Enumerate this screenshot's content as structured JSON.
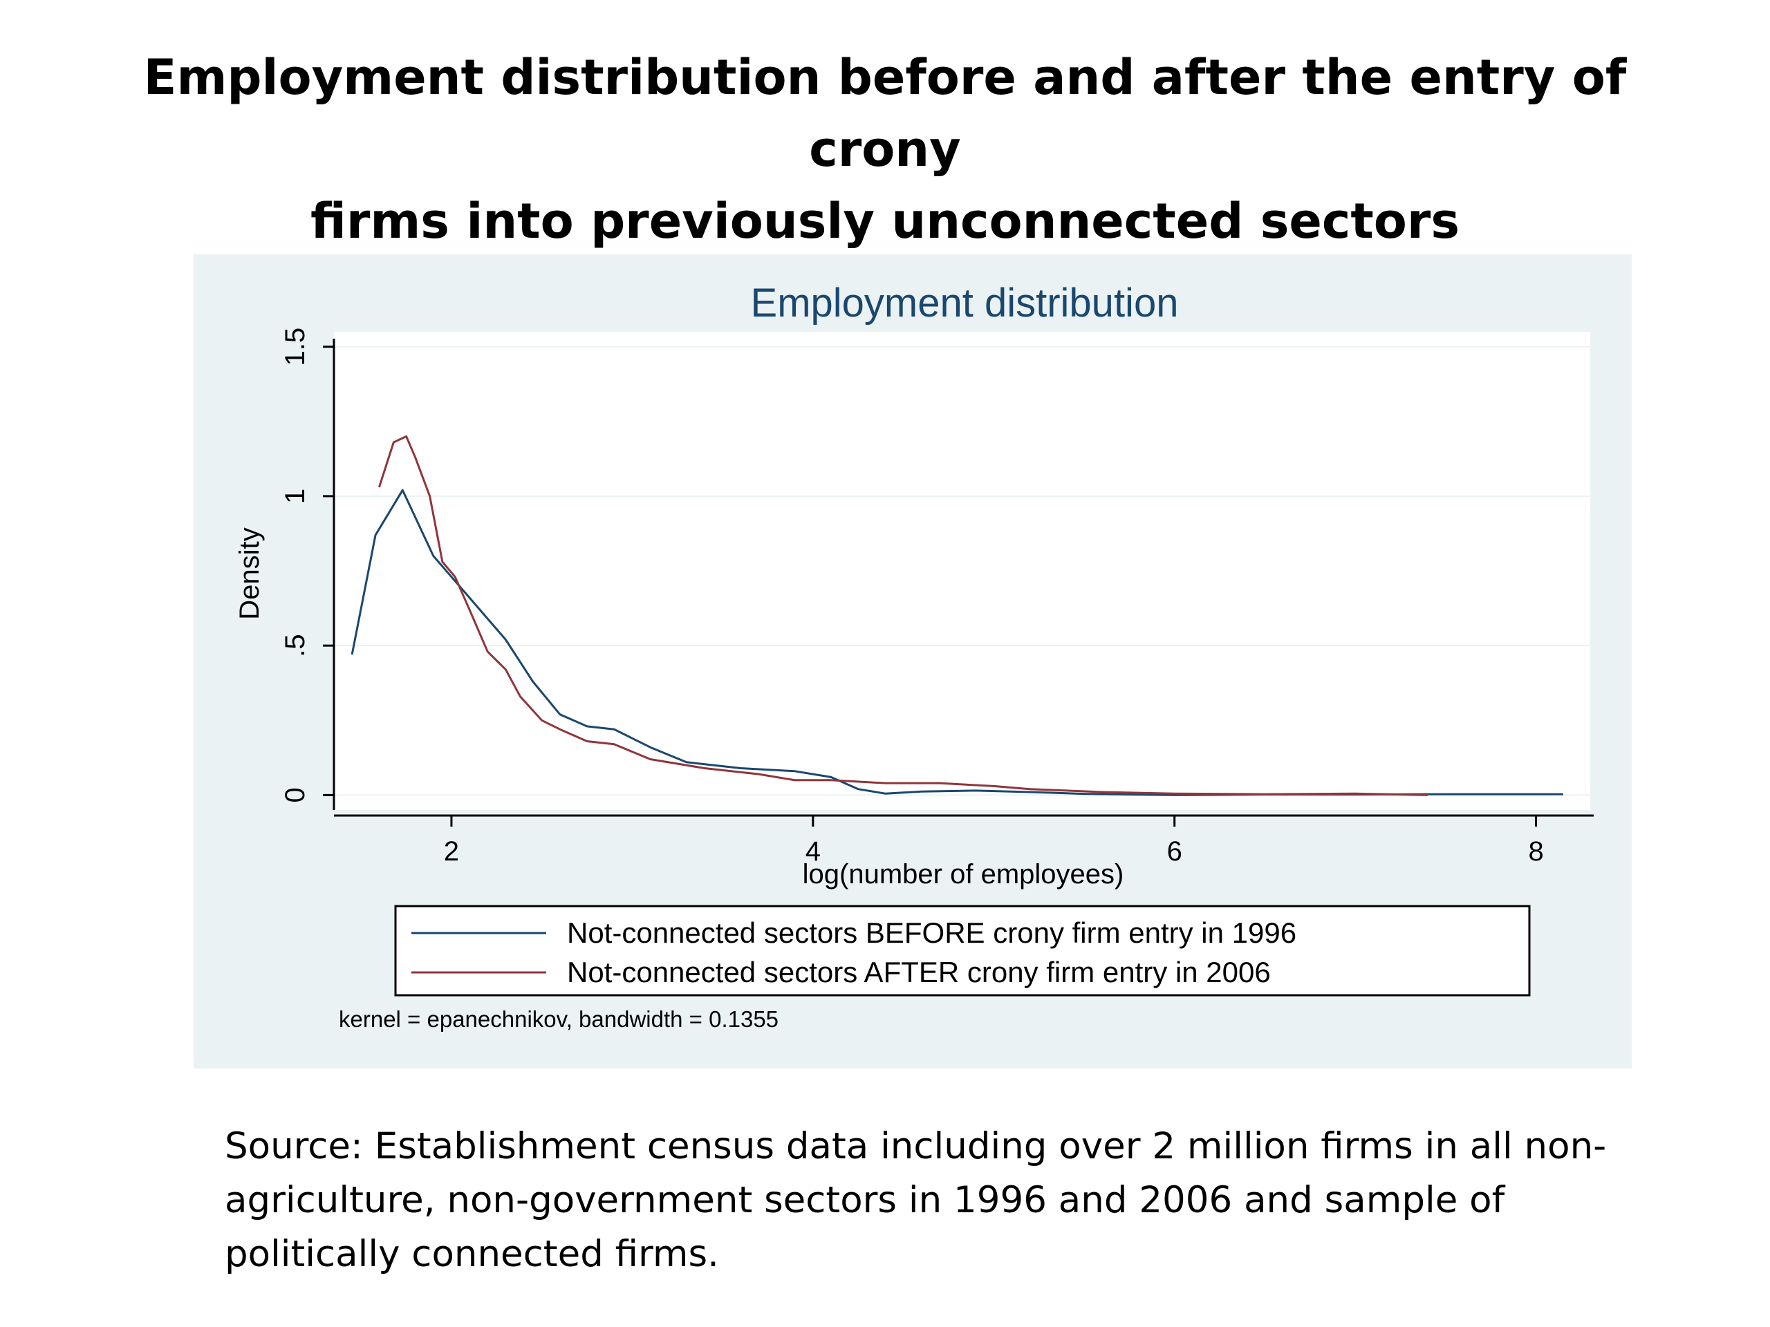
{
  "slide": {
    "title_lines": [
      "Employment distribution before and after the entry of crony",
      "firms into previously unconnected sectors"
    ],
    "source_lines": [
      "Source: Establishment census data including over 2 million firms in all non-",
      "agriculture, non-government sectors in 1996 and 2006 and sample of",
      "politically connected firms."
    ]
  },
  "colors": {
    "panel_bg": "#eaf2f3",
    "plot_bg": "#ffffff",
    "title": "#1a476f",
    "before": "#1a476f",
    "after": "#90353b"
  },
  "chart_data": {
    "type": "line",
    "title": "Employment distribution",
    "xlabel": "log(number of employees)",
    "ylabel": "Density",
    "xlim": [
      1.35,
      8.3
    ],
    "ylim": [
      -0.05,
      1.55
    ],
    "xticks": [
      2,
      4,
      6,
      8
    ],
    "xtick_labels": [
      "2",
      "4",
      "6",
      "8"
    ],
    "yticks": [
      0,
      0.5,
      1,
      1.5
    ],
    "ytick_labels": [
      "0",
      ".5",
      "1",
      "1.5"
    ],
    "grid": true,
    "legend_position": "bottom",
    "note": "kernel = epanechnikov, bandwidth = 0.1355",
    "series": [
      {
        "name": "Not-connected sectors BEFORE crony firm entry in 1996",
        "color": "#1a476f",
        "x": [
          1.45,
          1.58,
          1.73,
          1.9,
          2.1,
          2.3,
          2.45,
          2.6,
          2.75,
          2.9,
          3.1,
          3.3,
          3.6,
          3.9,
          4.1,
          4.25,
          4.4,
          4.6,
          4.9,
          5.2,
          5.5,
          6.0,
          6.5,
          7.0,
          7.5,
          8.15
        ],
        "y": [
          0.47,
          0.87,
          1.02,
          0.8,
          0.66,
          0.52,
          0.38,
          0.27,
          0.23,
          0.22,
          0.16,
          0.11,
          0.09,
          0.08,
          0.06,
          0.02,
          0.005,
          0.012,
          0.015,
          0.01,
          0.004,
          0.0,
          0.002,
          0.002,
          0.003,
          0.003
        ]
      },
      {
        "name": "Not-connected sectors AFTER crony firm entry in 2006",
        "color": "#90353b",
        "x": [
          1.6,
          1.68,
          1.75,
          1.8,
          1.88,
          1.95,
          2.02,
          2.1,
          2.2,
          2.3,
          2.38,
          2.5,
          2.6,
          2.75,
          2.9,
          3.1,
          3.4,
          3.7,
          3.9,
          4.1,
          4.4,
          4.7,
          5.0,
          5.2,
          5.6,
          6.0,
          6.5,
          7.0,
          7.4
        ],
        "y": [
          1.03,
          1.18,
          1.2,
          1.13,
          1.0,
          0.78,
          0.73,
          0.62,
          0.48,
          0.42,
          0.33,
          0.25,
          0.22,
          0.18,
          0.17,
          0.12,
          0.09,
          0.07,
          0.05,
          0.05,
          0.04,
          0.04,
          0.03,
          0.02,
          0.01,
          0.005,
          0.003,
          0.005,
          0.0
        ]
      }
    ]
  }
}
